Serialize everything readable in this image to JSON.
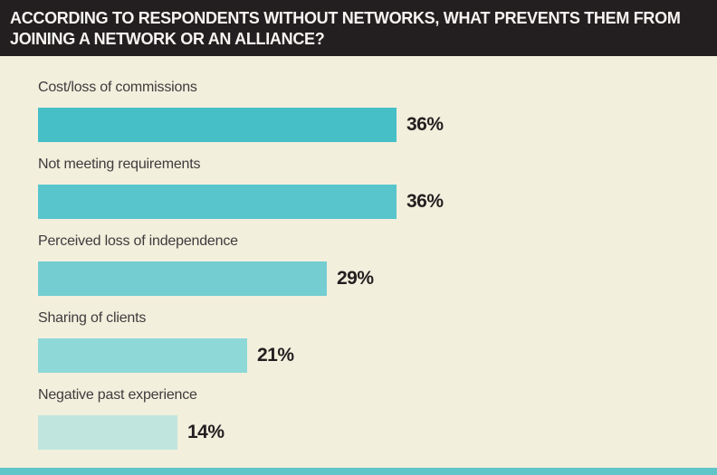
{
  "title": {
    "line1": "ACCORDING TO RESPONDENTS WITHOUT NETWORKS, WHAT PREVENTS THEM FROM",
    "line2": "JOINING A NETWORK OR AN ALLIANCE?"
  },
  "colors": {
    "banner_bg": "#231f20",
    "banner_text": "#f7f5f2",
    "background": "#f2efdd",
    "label_text": "#3f3b3c",
    "value_text": "#231f20",
    "footer_strip": "#5fc5c8"
  },
  "chart_data": {
    "type": "bar",
    "orientation": "horizontal",
    "title": "ACCORDING TO RESPONDENTS WITHOUT NETWORKS, WHAT PREVENTS THEM FROM JOINING A NETWORK OR AN ALLIANCE?",
    "categories": [
      "Cost/loss of commissions",
      "Not meeting requirements",
      "Perceived loss of independence",
      "Sharing of clients",
      "Negative past experience"
    ],
    "values": [
      36,
      36,
      29,
      21,
      14
    ],
    "value_labels": [
      "36%",
      "36%",
      "29%",
      "21%",
      "14%"
    ],
    "bar_colors": [
      "#46bfc7",
      "#57c5cb",
      "#74cdd1",
      "#8ed8d8",
      "#c0e5de"
    ],
    "xlim": [
      0,
      40
    ],
    "grid": false,
    "legend": false,
    "xlabel": "",
    "ylabel": ""
  }
}
